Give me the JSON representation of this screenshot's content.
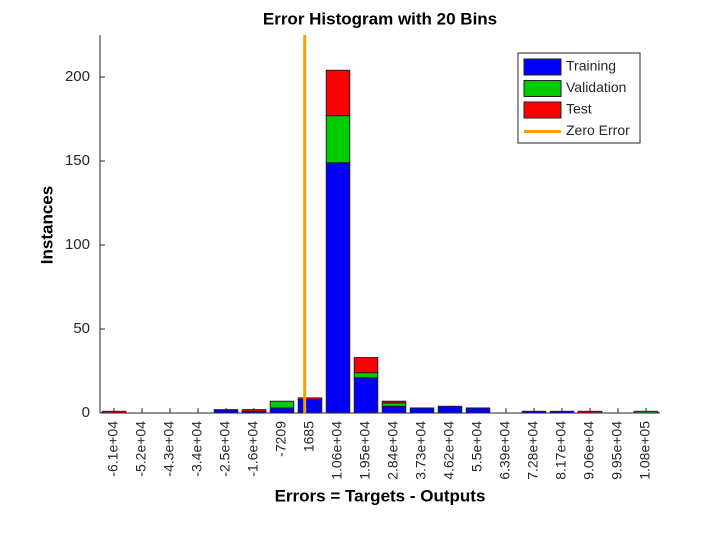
{
  "chart_data": {
    "type": "bar",
    "stacked": true,
    "title": "Error Histogram with 20 Bins",
    "x_label": "Errors = Targets - Outputs",
    "y_label": "Instances",
    "categories": [
      "-6.1e+04",
      "-5.2e+04",
      "-4.3e+04",
      "-3.4e+04",
      "-2.5e+04",
      "-1.6e+04",
      "-7209",
      "1685",
      "1.06e+04",
      "1.95e+04",
      "2.84e+04",
      "3.73e+04",
      "4.62e+04",
      "5.5e+04",
      "6.39e+04",
      "7.28e+04",
      "8.17e+04",
      "9.06e+04",
      "9.95e+04",
      "1.08e+05"
    ],
    "series": [
      {
        "name": "Training",
        "color": "#0000ff",
        "values": [
          0,
          0,
          0,
          0,
          2,
          1,
          3,
          8,
          149,
          21,
          4,
          3,
          4,
          3,
          0,
          1,
          1,
          0,
          0,
          0
        ]
      },
      {
        "name": "Validation",
        "color": "#00cc00",
        "values": [
          0,
          0,
          0,
          0,
          0,
          0,
          4,
          0,
          28,
          3,
          2,
          0,
          0,
          0,
          0,
          0,
          0,
          0,
          0,
          1
        ]
      },
      {
        "name": "Test",
        "color": "#ff0000",
        "values": [
          1,
          0,
          0,
          0,
          0,
          1,
          0,
          1,
          27,
          9,
          1,
          0,
          0,
          0,
          0,
          0,
          0,
          1,
          0,
          0
        ]
      }
    ],
    "zero_line": {
      "name": "Zero Error",
      "color": "#f5a000",
      "value": 0
    },
    "ylim": [
      0,
      225
    ],
    "yticks": [
      0,
      50,
      100,
      150,
      200
    ],
    "legend": "upper right"
  }
}
